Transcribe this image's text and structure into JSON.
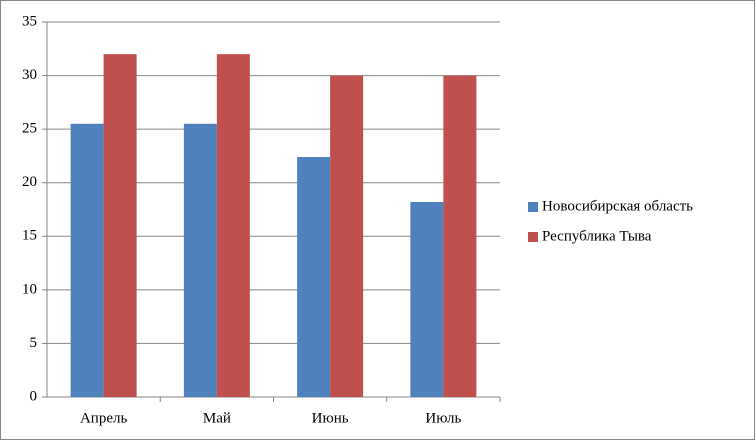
{
  "chart_data": {
    "type": "bar",
    "categories": [
      "Апрель",
      "Май",
      "Июнь",
      "Июль"
    ],
    "series": [
      {
        "name": "Новосибирская область",
        "color": "#4f81bd",
        "values": [
          25.5,
          25.5,
          22.4,
          18.2
        ]
      },
      {
        "name": "Республика Тыва",
        "color": "#c0504d",
        "values": [
          32,
          32,
          30,
          30
        ]
      }
    ],
    "ylim": [
      0,
      35
    ],
    "yticks": [
      0,
      5,
      10,
      15,
      20,
      25,
      30,
      35
    ],
    "grid": true,
    "legend": "right"
  }
}
